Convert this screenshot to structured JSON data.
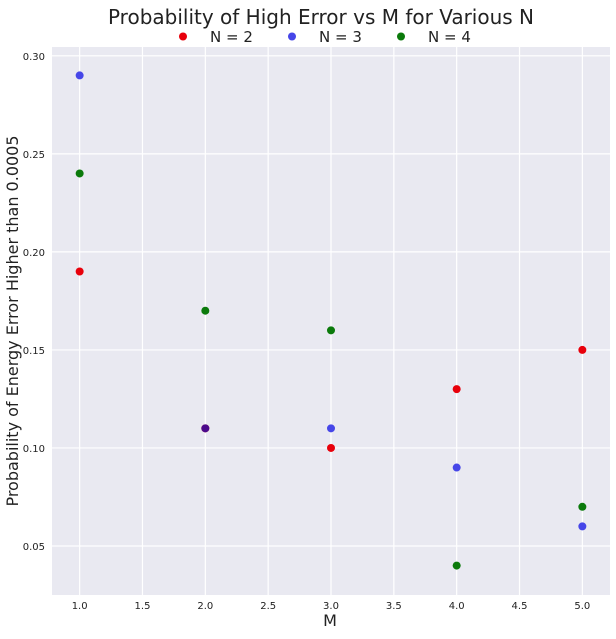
{
  "chart_data": {
    "type": "scatter",
    "title": "Probability of High Error vs M for Various N",
    "xlabel": "M",
    "ylabel": "Probability of Energy Error Higher than 0.0005",
    "xlim": [
      0.78,
      5.22
    ],
    "ylim": [
      0.025,
      0.3045
    ],
    "xticks": [
      "1.0",
      "1.5",
      "2.0",
      "2.5",
      "3.0",
      "3.5",
      "4.0",
      "4.5",
      "5.0"
    ],
    "yticks": [
      "0.05",
      "0.10",
      "0.15",
      "0.20",
      "0.25",
      "0.30"
    ],
    "grid": true,
    "legend_position": "top-center",
    "background": "#e9e9f1",
    "series": [
      {
        "name": "N = 2",
        "color": "#e8000b",
        "x": [
          1,
          2,
          3,
          4,
          5
        ],
        "y": [
          0.19,
          0.11,
          0.1,
          0.13,
          0.15
        ]
      },
      {
        "name": "N = 3",
        "color": "#4646e8",
        "x": [
          1,
          2,
          3,
          4,
          5
        ],
        "y": [
          0.29,
          0.11,
          0.11,
          0.09,
          0.06
        ]
      },
      {
        "name": "N = 4",
        "color": "#0b7a0b",
        "x": [
          1,
          2,
          3,
          4,
          5
        ],
        "y": [
          0.24,
          0.17,
          0.16,
          0.04,
          0.07
        ]
      }
    ],
    "overlap_color": "#4b0a8c"
  }
}
